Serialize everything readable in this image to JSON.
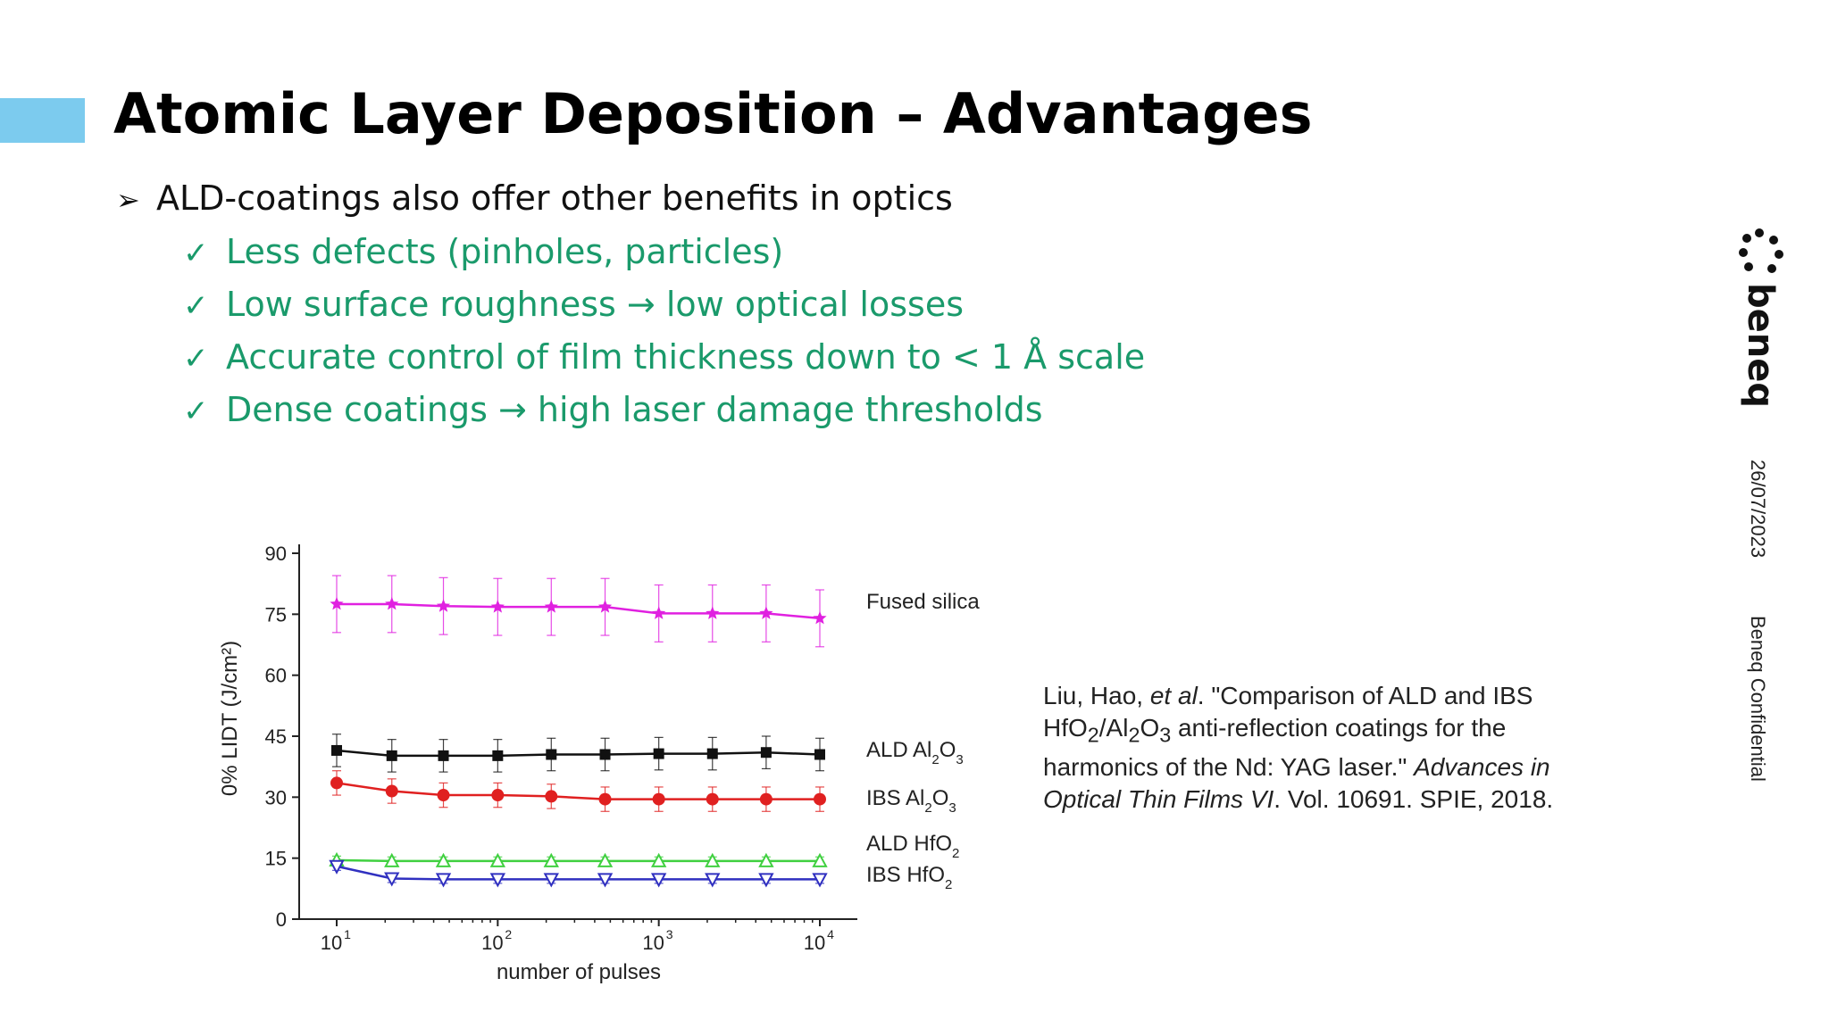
{
  "slide": {
    "title": "Atomic Layer Deposition – Advantages",
    "main_bullet": "ALD-coatings also offer other benefits in optics",
    "sub_bullets": [
      "Less defects (pinholes, particles)",
      "Low surface roughness → low optical losses",
      "Accurate control of film thickness down to < 1 Å scale",
      "Dense coatings → high laser damage thresholds"
    ],
    "accent_color": "#7ccbee",
    "sub_bullet_color": "#1a9a6b"
  },
  "citation": {
    "authors": "Liu, Hao, ",
    "et_al": "et al",
    "title_part1": ". \"Comparison of ALD and IBS ",
    "title_part2": " anti-reflection coatings for the harmonics of the Nd: YAG laser.\" ",
    "journal": "Advances in Optical Thin Films VI",
    "details": ". Vol. 10691. SPIE, 2018."
  },
  "sidebar": {
    "brand": "beneq",
    "date": "26/07/2023",
    "confidential": "Beneq Confidential"
  },
  "chart_data": {
    "type": "line",
    "xlabel": "number of pulses",
    "ylabel": "0% LIDT (J/cm²)",
    "x_scale": "log",
    "x": [
      10,
      22,
      46,
      100,
      215,
      464,
      1000,
      2154,
      4642,
      10000
    ],
    "x_ticks": [
      "10",
      "10",
      "10",
      "10"
    ],
    "x_tick_exponents": [
      "1",
      "2",
      "3",
      "4"
    ],
    "y_ticks": [
      "0",
      "15",
      "30",
      "45",
      "60",
      "75",
      "90"
    ],
    "ylim": [
      0,
      90
    ],
    "series": [
      {
        "name": "Fused silica",
        "marker": "star",
        "color": "#e020e0",
        "values": [
          77.5,
          77.5,
          77,
          76.8,
          76.8,
          76.8,
          75.2,
          75.2,
          75.2,
          74
        ],
        "error": [
          7,
          7,
          7,
          7,
          7,
          7,
          7,
          7,
          7,
          7
        ]
      },
      {
        "name": "ALD Al2O3",
        "label_main": "ALD Al",
        "sub1": "2",
        "mid": "O",
        "sub2": "3",
        "marker": "square",
        "color": "#111111",
        "values": [
          41.5,
          40.2,
          40.2,
          40.2,
          40.5,
          40.5,
          40.7,
          40.7,
          41,
          40.5
        ],
        "error": [
          4,
          4,
          4,
          4,
          4,
          4,
          4,
          4,
          4,
          4
        ]
      },
      {
        "name": "IBS Al2O3",
        "label_main": "IBS Al",
        "sub1": "2",
        "mid": "O",
        "sub2": "3",
        "marker": "circle",
        "color": "#e02020",
        "values": [
          33.5,
          31.5,
          30.5,
          30.5,
          30.2,
          29.5,
          29.5,
          29.5,
          29.5,
          29.5
        ],
        "error": [
          3,
          3,
          3,
          3,
          3,
          3,
          3,
          3,
          3,
          3
        ]
      },
      {
        "name": "ALD HfO2",
        "label_main": "ALD HfO",
        "sub1": "2",
        "marker": "triangle-up",
        "color": "#40d040",
        "values": [
          14.5,
          14.3,
          14.3,
          14.3,
          14.3,
          14.3,
          14.3,
          14.3,
          14.3,
          14.3
        ],
        "error": [
          1,
          1,
          1,
          1,
          1,
          1,
          1,
          1,
          1,
          1
        ]
      },
      {
        "name": "IBS HfO2",
        "label_main": "IBS HfO",
        "sub1": "2",
        "marker": "triangle-down",
        "color": "#3030c0",
        "values": [
          13,
          10,
          9.8,
          9.8,
          9.8,
          9.8,
          9.8,
          9.8,
          9.8,
          9.8
        ],
        "error": [
          1,
          1,
          1,
          1,
          1,
          1,
          1,
          1,
          1,
          1
        ]
      }
    ]
  }
}
